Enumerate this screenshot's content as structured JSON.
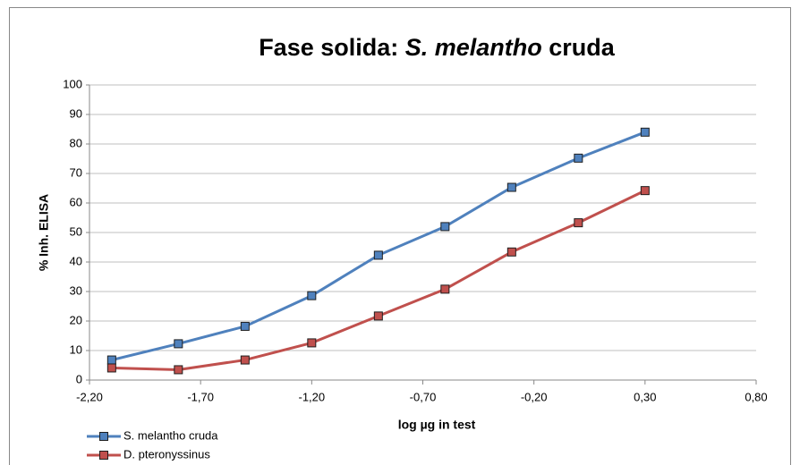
{
  "chart_data": {
    "type": "line",
    "title_parts": [
      "Fase solida: ",
      "S. melantho",
      " cruda"
    ],
    "x_label": "log µg in test",
    "y_label": "% Inh. ELISA",
    "x": [
      -2.1,
      -1.8,
      -1.5,
      -1.2,
      -0.9,
      -0.6,
      -0.3,
      0.0,
      0.3
    ],
    "series": [
      {
        "name": "S. melantho cruda",
        "color": "#4f81bd",
        "marker_color": "#3c6db4",
        "values": [
          6.8,
          12.3,
          18.2,
          28.6,
          42.3,
          52.0,
          65.3,
          75.2,
          84.0
        ]
      },
      {
        "name": "D. pteronyssinus",
        "color": "#c0504d",
        "marker_color": "#b43c39",
        "values": [
          4.1,
          3.5,
          6.8,
          12.6,
          21.7,
          30.8,
          43.4,
          53.3,
          64.2
        ]
      }
    ],
    "xlim": [
      -2.2,
      0.8
    ],
    "xticks": [
      {
        "value": -2.2,
        "label": "-2,20"
      },
      {
        "value": -1.7,
        "label": "-1,70"
      },
      {
        "value": -1.2,
        "label": "-1,20"
      },
      {
        "value": -0.7,
        "label": "-0,70"
      },
      {
        "value": -0.2,
        "label": "-0,20"
      },
      {
        "value": 0.3,
        "label": "0,30"
      },
      {
        "value": 0.8,
        "label": "0,80"
      }
    ],
    "ylim": [
      0,
      100
    ],
    "yticks": [
      0,
      10,
      20,
      30,
      40,
      50,
      60,
      70,
      80,
      90,
      100
    ],
    "grid": true,
    "legend": "bottom-left"
  }
}
